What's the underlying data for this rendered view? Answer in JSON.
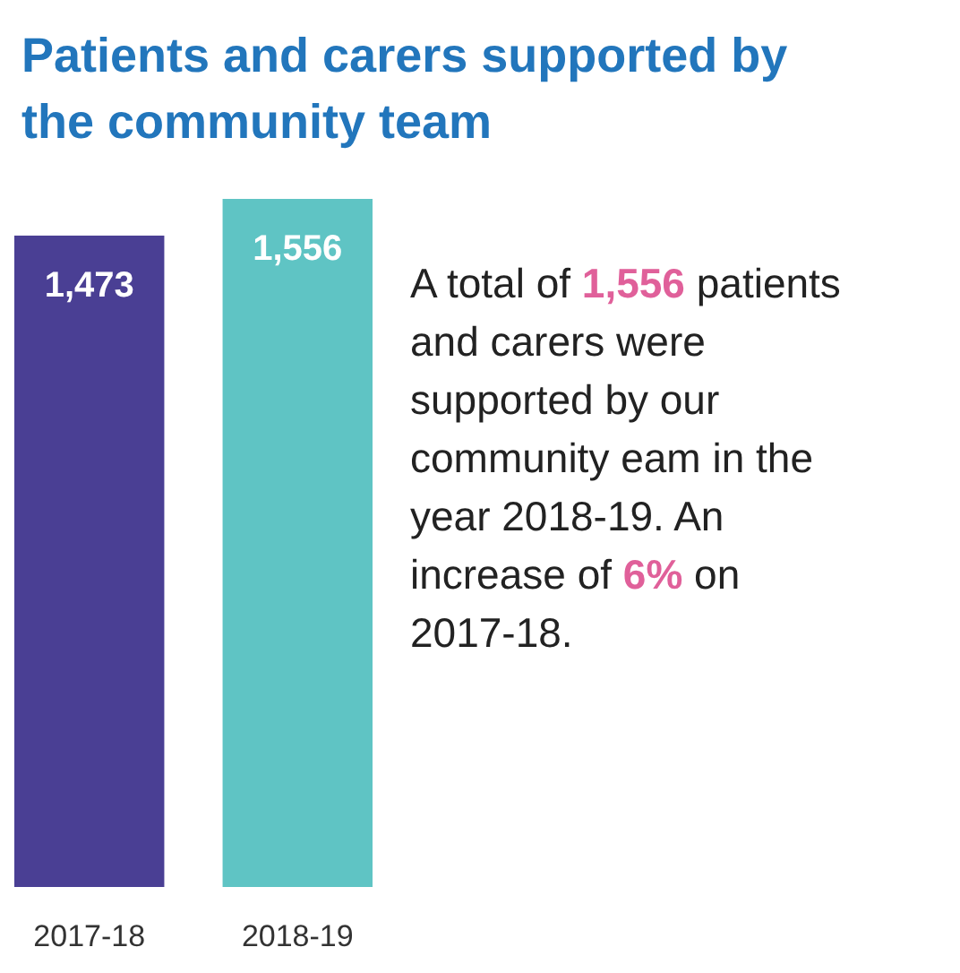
{
  "chart_data": {
    "type": "bar",
    "title": "Patients and carers supported by the community team",
    "categories": [
      "2017-18",
      "2018-19"
    ],
    "values": [
      1473,
      1556
    ],
    "colors": [
      "#4a3f94",
      "#5fc4c4"
    ],
    "ylim": [
      0,
      1556
    ],
    "data_labels": true,
    "value_labels": [
      "1,473",
      "1,556"
    ],
    "annotations": [
      "A total of 1,556 patients and carers were supported by our community eam in the year 2018-19. An increase of 6% on 2017-18."
    ]
  }
}
